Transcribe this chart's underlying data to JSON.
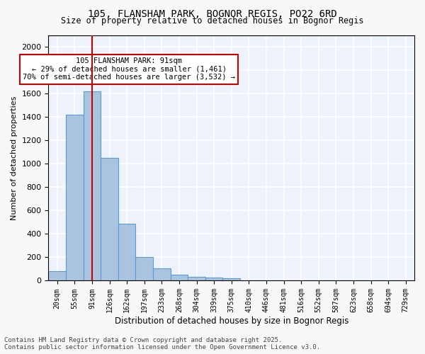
{
  "title1": "105, FLANSHAM PARK, BOGNOR REGIS, PO22 6RD",
  "title2": "Size of property relative to detached houses in Bognor Regis",
  "xlabel": "Distribution of detached houses by size in Bognor Regis",
  "ylabel": "Number of detached properties",
  "bar_color": "#aac4e0",
  "bar_edge_color": "#5b9bd5",
  "background_color": "#eef3fb",
  "grid_color": "#ffffff",
  "annotation_text": "105 FLANSHAM PARK: 91sqm\n← 29% of detached houses are smaller (1,461)\n70% of semi-detached houses are larger (3,532) →",
  "annotation_box_color": "#cc0000",
  "vline_x": 2,
  "vline_color": "#cc0000",
  "categories": [
    "20sqm",
    "55sqm",
    "91sqm",
    "126sqm",
    "162sqm",
    "197sqm",
    "233sqm",
    "268sqm",
    "304sqm",
    "339sqm",
    "375sqm",
    "410sqm",
    "446sqm",
    "481sqm",
    "516sqm",
    "552sqm",
    "587sqm",
    "623sqm",
    "658sqm",
    "694sqm",
    "729sqm"
  ],
  "values": [
    80,
    1420,
    1620,
    1050,
    490,
    205,
    105,
    50,
    35,
    25,
    20,
    0,
    0,
    0,
    0,
    0,
    0,
    0,
    0,
    0,
    0
  ],
  "ylim": [
    0,
    2100
  ],
  "yticks": [
    0,
    200,
    400,
    600,
    800,
    1000,
    1200,
    1400,
    1600,
    1800,
    2000
  ],
  "footer1": "Contains HM Land Registry data © Crown copyright and database right 2025.",
  "footer2": "Contains public sector information licensed under the Open Government Licence v3.0."
}
